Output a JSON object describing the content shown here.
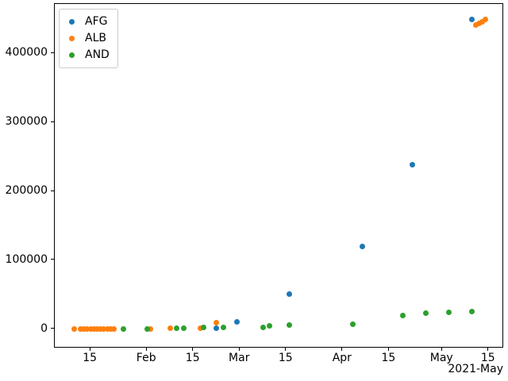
{
  "figure": {
    "background": "#ffffff"
  },
  "chart_data": {
    "type": "scatter",
    "title": "",
    "xlabel": "",
    "ylabel": "",
    "grid": false,
    "legend_position": "upper-left",
    "x_axis": {
      "epoch": "2021-01-15",
      "range_days": [
        -10.8,
        124.6
      ],
      "offset_label": "2021-May",
      "ticks": [
        {
          "label": "15",
          "date": "2021-01-15"
        },
        {
          "label": "Feb",
          "date": "2021-02-01"
        },
        {
          "label": "15",
          "date": "2021-02-15"
        },
        {
          "label": "Mar",
          "date": "2021-03-01"
        },
        {
          "label": "15",
          "date": "2021-03-15"
        },
        {
          "label": "Apr",
          "date": "2021-04-01"
        },
        {
          "label": "15",
          "date": "2021-04-15"
        },
        {
          "label": "May",
          "date": "2021-05-01"
        },
        {
          "label": "15",
          "date": "2021-05-15"
        }
      ]
    },
    "y_axis": {
      "range": [
        -28000,
        472000
      ],
      "ticks": [
        {
          "label": "0",
          "value": 0
        },
        {
          "label": "100000",
          "value": 100000
        },
        {
          "label": "200000",
          "value": 200000
        },
        {
          "label": "300000",
          "value": 300000
        },
        {
          "label": "400000",
          "value": 400000
        }
      ]
    },
    "series": [
      {
        "name": "AFG",
        "color": "#1f77b4",
        "points": [
          [
            "2021-02-22",
            1000
          ],
          [
            "2021-02-28",
            10500
          ],
          [
            "2021-03-16",
            51000
          ],
          [
            "2021-04-07",
            120000
          ],
          [
            "2021-04-22",
            239000
          ],
          [
            "2021-05-10",
            450000
          ]
        ]
      },
      {
        "name": "ALB",
        "color": "#ff7f0e",
        "points": [
          [
            "2021-01-10",
            128
          ],
          [
            "2021-01-12",
            188
          ],
          [
            "2021-01-13",
            266
          ],
          [
            "2021-01-14",
            308
          ],
          [
            "2021-01-15",
            369
          ],
          [
            "2021-01-16",
            405
          ],
          [
            "2021-01-17",
            447
          ],
          [
            "2021-01-18",
            483
          ],
          [
            "2021-01-19",
            519
          ],
          [
            "2021-01-20",
            549
          ],
          [
            "2021-01-21",
            577
          ],
          [
            "2021-01-22",
            598
          ],
          [
            "2021-02-02",
            700
          ],
          [
            "2021-02-08",
            921
          ],
          [
            "2021-02-17",
            1100
          ],
          [
            "2021-02-22",
            10000
          ],
          [
            "2021-05-11",
            441000
          ],
          [
            "2021-05-12",
            443500
          ],
          [
            "2021-05-13",
            446500
          ],
          [
            "2021-05-14",
            449000
          ]
        ]
      },
      {
        "name": "AND",
        "color": "#2ca02c",
        "points": [
          [
            "2021-01-25",
            455
          ],
          [
            "2021-02-01",
            576
          ],
          [
            "2021-02-10",
            1291
          ],
          [
            "2021-02-12",
            1700
          ],
          [
            "2021-02-18",
            2141
          ],
          [
            "2021-02-24",
            2900
          ],
          [
            "2021-03-08",
            3000
          ],
          [
            "2021-03-10",
            4300
          ],
          [
            "2021-03-16",
            6300
          ],
          [
            "2021-04-04",
            7500
          ],
          [
            "2021-04-19",
            20200
          ],
          [
            "2021-04-26",
            23600
          ],
          [
            "2021-05-03",
            24800
          ],
          [
            "2021-05-10",
            25900
          ]
        ]
      }
    ]
  }
}
